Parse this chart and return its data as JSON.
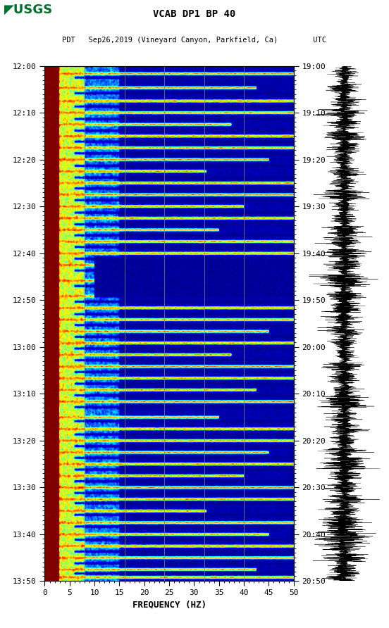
{
  "title_line1": "VCAB DP1 BP 40",
  "title_line2_left": "PDT   Sep26,2019 (Vineyard Canyon, Parkfield, Ca)        UTC",
  "left_times": [
    "12:00",
    "12:10",
    "12:20",
    "12:30",
    "12:40",
    "12:50",
    "13:00",
    "13:10",
    "13:20",
    "13:30",
    "13:40",
    "13:50"
  ],
  "right_times": [
    "19:00",
    "19:10",
    "19:20",
    "19:30",
    "19:40",
    "19:50",
    "20:00",
    "20:10",
    "20:20",
    "20:30",
    "20:40",
    "20:50"
  ],
  "freq_min": 0,
  "freq_max": 50,
  "freq_ticks": [
    0,
    5,
    10,
    15,
    20,
    25,
    30,
    35,
    40,
    45,
    50
  ],
  "xlabel": "FREQUENCY (HZ)",
  "bg_color": "#ffffff",
  "spectrogram_colormap": "jet",
  "usgs_green": "#007030",
  "vertical_lines_freq": [
    8,
    16,
    24,
    32,
    40
  ],
  "n_time_steps": 660,
  "n_freq_steps": 300,
  "random_seed": 42
}
